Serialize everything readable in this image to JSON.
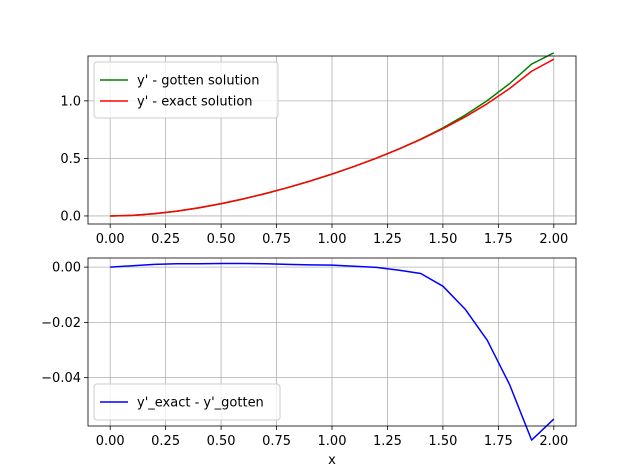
{
  "chart_data": [
    {
      "type": "line",
      "xlabel": "",
      "ylabel": "",
      "xlim": [
        -0.1,
        2.1
      ],
      "ylim": [
        -0.07,
        1.39
      ],
      "xticks": [
        0.0,
        0.25,
        0.5,
        0.75,
        1.0,
        1.25,
        1.5,
        1.75,
        2.0
      ],
      "xtick_labels": [
        "0.00",
        "0.25",
        "0.50",
        "0.75",
        "1.00",
        "1.25",
        "1.50",
        "1.75",
        "2.00"
      ],
      "yticks": [
        0.0,
        0.5,
        1.0
      ],
      "ytick_labels": [
        "0.0",
        "0.5",
        "1.0"
      ],
      "grid": true,
      "legend": "upper-left",
      "series": [
        {
          "name": "y' - gotten solution",
          "color": "#008000",
          "x": [
            0,
            0.1,
            0.2,
            0.3,
            0.4,
            0.5,
            0.6,
            0.7,
            0.8,
            0.9,
            1.0,
            1.1,
            1.2,
            1.3,
            1.4,
            1.5,
            1.6,
            1.7,
            1.8,
            1.9,
            2.0
          ],
          "y": [
            0.0,
            0.0048,
            0.0187,
            0.0409,
            0.0704,
            0.1062,
            0.1474,
            0.1939,
            0.2455,
            0.3019,
            0.3633,
            0.4303,
            0.5023,
            0.5809,
            0.6676,
            0.7647,
            0.8757,
            1.0021,
            1.1488,
            1.3201,
            1.417
          ]
        },
        {
          "name": "y' - exact solution",
          "color": "#ff0000",
          "x": [
            0,
            0.1,
            0.2,
            0.3,
            0.4,
            0.5,
            0.6,
            0.7,
            0.8,
            0.9,
            1.0,
            1.1,
            1.2,
            1.3,
            1.4,
            1.5,
            1.6,
            1.7,
            1.8,
            1.9,
            2.0
          ],
          "y": [
            0.0,
            0.0053,
            0.0197,
            0.0421,
            0.0716,
            0.1075,
            0.1487,
            0.1951,
            0.2465,
            0.3027,
            0.364,
            0.4306,
            0.5022,
            0.5798,
            0.6653,
            0.7578,
            0.8605,
            0.9756,
            1.1064,
            1.2575,
            1.362
          ]
        }
      ]
    },
    {
      "type": "line",
      "xlabel": "x",
      "ylabel": "",
      "xlim": [
        -0.1,
        2.1
      ],
      "ylim": [
        -0.0575,
        0.0033
      ],
      "xticks": [
        0.0,
        0.25,
        0.5,
        0.75,
        1.0,
        1.25,
        1.5,
        1.75,
        2.0
      ],
      "xtick_labels": [
        "0.00",
        "0.25",
        "0.50",
        "0.75",
        "1.00",
        "1.25",
        "1.50",
        "1.75",
        "2.00"
      ],
      "yticks": [
        0.0,
        -0.02,
        -0.04
      ],
      "ytick_labels": [
        "0.00",
        "−0.02",
        "−0.04"
      ],
      "grid": true,
      "legend": "lower-left",
      "series": [
        {
          "name": "y'_exact - y'_gotten",
          "color": "#0000ff",
          "x": [
            0,
            0.1,
            0.2,
            0.3,
            0.4,
            0.5,
            0.6,
            0.7,
            0.8,
            0.9,
            1.0,
            1.1,
            1.2,
            1.3,
            1.4,
            1.5,
            1.6,
            1.7,
            1.8,
            1.9,
            2.0
          ],
          "y": [
            0.0,
            0.0005,
            0.001,
            0.0012,
            0.0012,
            0.0013,
            0.0013,
            0.0012,
            0.001,
            0.0008,
            0.0007,
            0.0003,
            -0.0001,
            -0.0011,
            -0.0023,
            -0.0069,
            -0.0152,
            -0.0265,
            -0.0424,
            -0.0626,
            -0.055
          ]
        }
      ]
    }
  ]
}
